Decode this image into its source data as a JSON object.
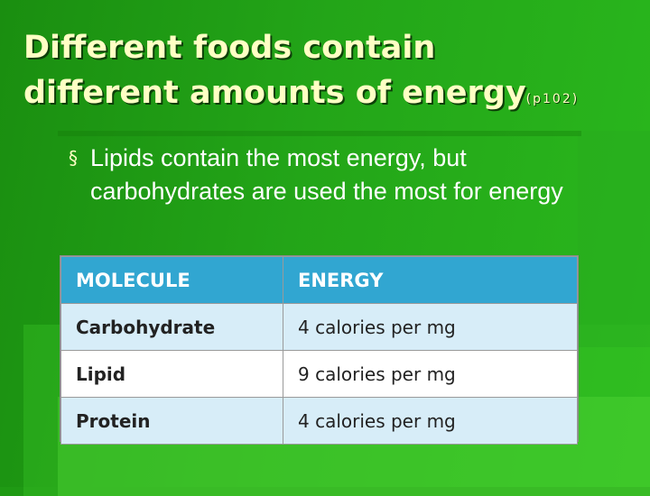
{
  "slide": {
    "title_line1": "Different foods contain",
    "title_line2": "different amounts of energy",
    "title_ref": "(p102)",
    "bullet_symbol": "§",
    "bullet_text": "Lipids contain the most energy, but carbohydrates are used the most for energy"
  },
  "table": {
    "headers": [
      "MOLECULE",
      "ENERGY"
    ],
    "rows": [
      {
        "molecule": "Carbohydrate",
        "energy": "4 calories per mg"
      },
      {
        "molecule": "Lipid",
        "energy": "9 calories per mg"
      },
      {
        "molecule": "Protein",
        "energy": "4 calories per mg"
      }
    ]
  },
  "colors": {
    "background": "#1f9a14",
    "title": "#ffffc4",
    "table_header": "#31a6d1",
    "table_row_shade": "#d7edf8"
  }
}
